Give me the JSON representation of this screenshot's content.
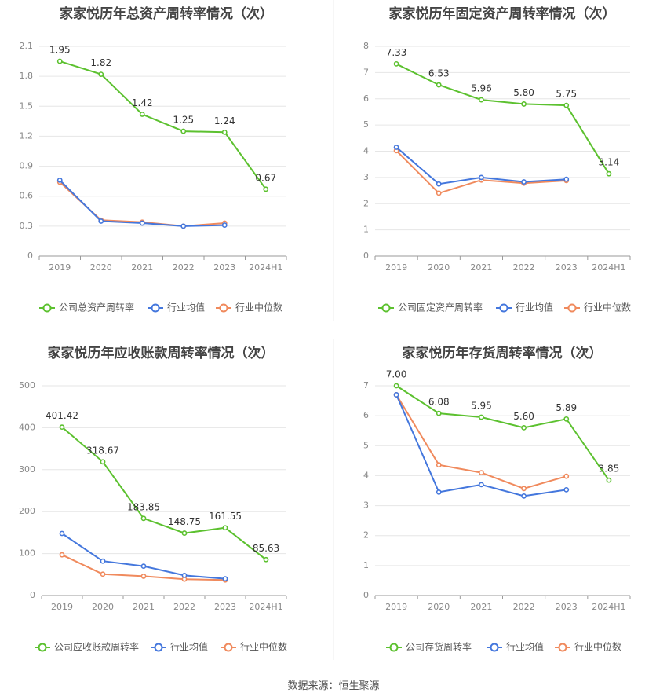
{
  "source_text": "数据来源：恒生聚源",
  "colors": {
    "company": "#5cc12f",
    "industry_avg": "#4477dd",
    "industry_median": "#f08a5d",
    "grid": "#e6e6e6",
    "axis_text": "#888888",
    "title": "#444444",
    "label": "#333333"
  },
  "chart_data": [
    {
      "type": "line",
      "title": "家家悦历年总资产周转率情况（次）",
      "categories": [
        "2019",
        "2020",
        "2021",
        "2022",
        "2023",
        "2024H1"
      ],
      "ylim": [
        0,
        2.1
      ],
      "yticks": [
        "0",
        "0.3",
        "0.6",
        "0.9",
        "1.2",
        "1.5",
        "1.8",
        "2.1"
      ],
      "grid": true,
      "legend_position": "bottom",
      "series": [
        {
          "name": "公司总资产周转率",
          "values": [
            1.95,
            1.82,
            1.42,
            1.25,
            1.24,
            0.67
          ],
          "labels": [
            "1.95",
            "1.82",
            "1.42",
            "1.25",
            "1.24",
            "0.67"
          ]
        },
        {
          "name": "行业均值",
          "values": [
            0.76,
            0.35,
            0.33,
            0.3,
            0.31,
            null
          ]
        },
        {
          "name": "行业中位数",
          "values": [
            0.74,
            0.36,
            0.34,
            0.3,
            0.33,
            null
          ]
        }
      ]
    },
    {
      "type": "line",
      "title": "家家悦历年固定资产周转率情况（次）",
      "categories": [
        "2019",
        "2020",
        "2021",
        "2022",
        "2023",
        "2024H1"
      ],
      "ylim": [
        0,
        8
      ],
      "yticks": [
        "0",
        "1",
        "2",
        "3",
        "4",
        "5",
        "6",
        "7",
        "8"
      ],
      "grid": true,
      "legend_position": "bottom",
      "series": [
        {
          "name": "公司固定资产周转率",
          "values": [
            7.33,
            6.53,
            5.96,
            5.8,
            5.75,
            3.14
          ],
          "labels": [
            "7.33",
            "6.53",
            "5.96",
            "5.80",
            "5.75",
            "3.14"
          ]
        },
        {
          "name": "行业均值",
          "values": [
            4.15,
            2.75,
            3.0,
            2.83,
            2.93,
            null
          ]
        },
        {
          "name": "行业中位数",
          "values": [
            4.02,
            2.4,
            2.9,
            2.78,
            2.88,
            null
          ]
        }
      ]
    },
    {
      "type": "line",
      "title": "家家悦历年应收账款周转率情况（次）",
      "categories": [
        "2019",
        "2020",
        "2021",
        "2022",
        "2023",
        "2024H1"
      ],
      "ylim": [
        0,
        500
      ],
      "yticks": [
        "0",
        "100",
        "200",
        "300",
        "400",
        "500"
      ],
      "grid": true,
      "legend_position": "bottom",
      "series": [
        {
          "name": "公司应收账款周转率",
          "values": [
            401.42,
            318.67,
            183.85,
            148.75,
            161.55,
            85.63
          ],
          "labels": [
            "401.42",
            "318.67",
            "183.85",
            "148.75",
            "161.55",
            "85.63"
          ]
        },
        {
          "name": "行业均值",
          "values": [
            148,
            82,
            70,
            48,
            40,
            null
          ]
        },
        {
          "name": "行业中位数",
          "values": [
            97,
            51,
            46,
            39,
            37,
            null
          ]
        }
      ]
    },
    {
      "type": "line",
      "title": "家家悦历年存货周转率情况（次）",
      "categories": [
        "2019",
        "2020",
        "2021",
        "2022",
        "2023",
        "2024H1"
      ],
      "ylim": [
        0,
        7
      ],
      "yticks": [
        "0",
        "1",
        "2",
        "3",
        "4",
        "5",
        "6",
        "7"
      ],
      "grid": true,
      "legend_position": "bottom",
      "series": [
        {
          "name": "公司存货周转率",
          "values": [
            7.0,
            6.08,
            5.95,
            5.6,
            5.89,
            3.85
          ],
          "labels": [
            "7.00",
            "6.08",
            "5.95",
            "5.60",
            "5.89",
            "3.85"
          ]
        },
        {
          "name": "行业均值",
          "values": [
            6.7,
            3.45,
            3.7,
            3.32,
            3.53,
            null
          ]
        },
        {
          "name": "行业中位数",
          "values": [
            6.7,
            4.36,
            4.1,
            3.57,
            3.98,
            null
          ]
        }
      ]
    }
  ]
}
